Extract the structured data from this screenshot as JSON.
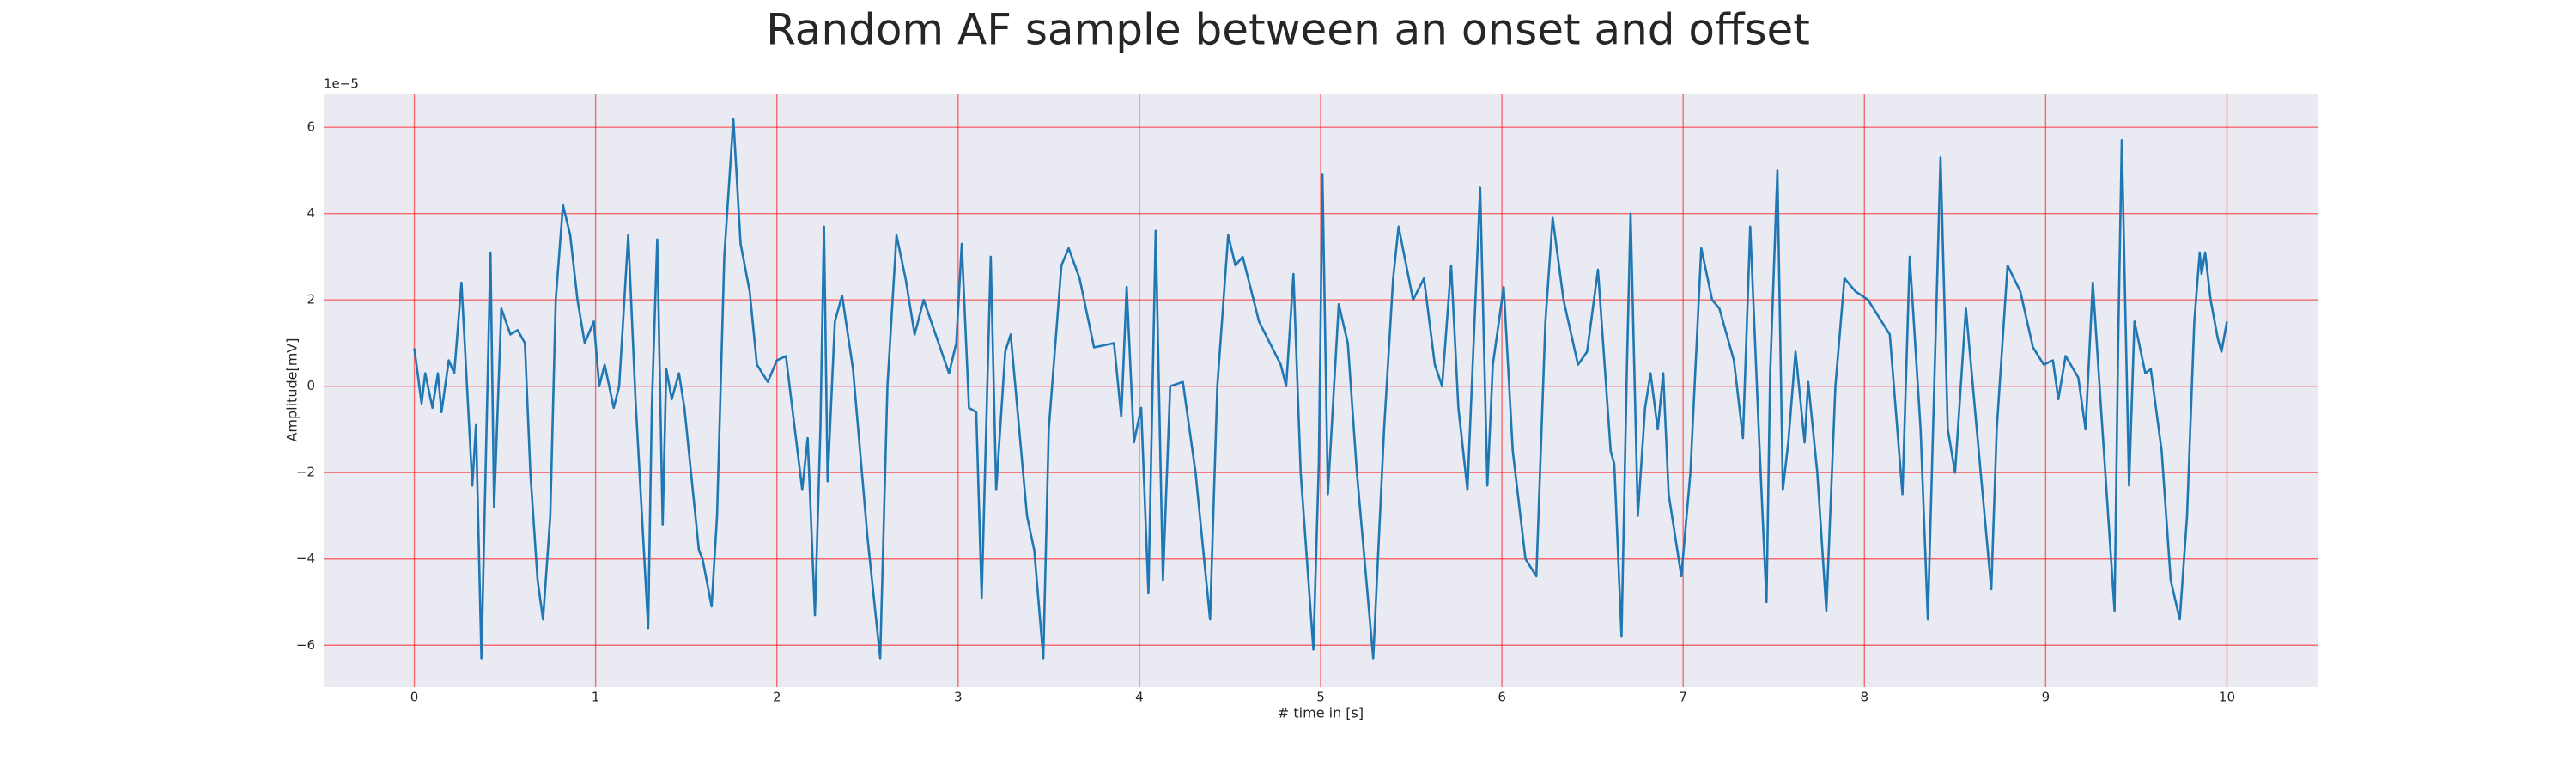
{
  "chart_data": {
    "type": "line",
    "title": "Random AF sample between an onset and offset",
    "x_label": "# time in [s]",
    "y_label": "Amplitude[mV]",
    "y_offset_text": "1e−5",
    "xlim": [
      -0.5,
      10.5
    ],
    "ylim": [
      -6.97,
      6.78
    ],
    "xticks": [
      0,
      1,
      2,
      3,
      4,
      5,
      6,
      7,
      8,
      9,
      10
    ],
    "yticks": [
      {
        "value": -6,
        "label": "−6"
      },
      {
        "value": -4,
        "label": "−4"
      },
      {
        "value": -2,
        "label": "−2"
      },
      0,
      2,
      4,
      6
    ],
    "grid": true,
    "grid_color": "#ff0000",
    "background": "#eaeaf2",
    "x": [
      0.0,
      0.04,
      0.06,
      0.1,
      0.13,
      0.15,
      0.19,
      0.22,
      0.26,
      0.32,
      0.34,
      0.37,
      0.42,
      0.44,
      0.48,
      0.53,
      0.57,
      0.61,
      0.64,
      0.68,
      0.71,
      0.75,
      0.78,
      0.82,
      0.86,
      0.9,
      0.94,
      0.99,
      1.02,
      1.05,
      1.1,
      1.13,
      1.18,
      1.22,
      1.29,
      1.31,
      1.34,
      1.37,
      1.39,
      1.42,
      1.46,
      1.49,
      1.57,
      1.59,
      1.64,
      1.67,
      1.71,
      1.76,
      1.8,
      1.85,
      1.89,
      1.95,
      2.0,
      2.05,
      2.14,
      2.17,
      2.21,
      2.24,
      2.26,
      2.28,
      2.32,
      2.36,
      2.42,
      2.5,
      2.57,
      2.61,
      2.66,
      2.71,
      2.76,
      2.81,
      2.95,
      2.99,
      3.02,
      3.06,
      3.1,
      3.13,
      3.18,
      3.21,
      3.26,
      3.29,
      3.38,
      3.42,
      3.47,
      3.5,
      3.57,
      3.61,
      3.67,
      3.75,
      3.86,
      3.9,
      3.93,
      3.97,
      4.01,
      4.05,
      4.09,
      4.13,
      4.17,
      4.24,
      4.31,
      4.39,
      4.43,
      4.49,
      4.53,
      4.57,
      4.66,
      4.78,
      4.81,
      4.85,
      4.89,
      4.96,
      4.99,
      5.01,
      5.04,
      5.1,
      5.15,
      5.2,
      5.29,
      5.35,
      5.4,
      5.43,
      5.51,
      5.57,
      5.63,
      5.67,
      5.72,
      5.76,
      5.81,
      5.88,
      5.92,
      5.95,
      6.01,
      6.06,
      6.13,
      6.19,
      6.24,
      6.28,
      6.34,
      6.42,
      6.47,
      6.53,
      6.6,
      6.62,
      6.66,
      6.69,
      6.71,
      6.75,
      6.79,
      6.82,
      6.86,
      6.89,
      6.92,
      6.99,
      7.04,
      7.1,
      7.16,
      7.2,
      7.28,
      7.33,
      7.37,
      7.42,
      7.46,
      7.48,
      7.52,
      7.55,
      7.58,
      7.62,
      7.67,
      7.69,
      7.74,
      7.79,
      7.84,
      7.89,
      7.95,
      8.02,
      8.14,
      8.21,
      8.25,
      8.31,
      8.35,
      8.42,
      8.46,
      8.5,
      8.56,
      8.62,
      8.7,
      8.73,
      8.79,
      8.86,
      8.93,
      8.99,
      9.04,
      9.07,
      9.11,
      9.18,
      9.22,
      9.26,
      9.31,
      9.38,
      9.4,
      9.42,
      9.46,
      9.49,
      9.55,
      9.58,
      9.64,
      9.69,
      9.74,
      9.78,
      9.82,
      9.85,
      9.86,
      9.88,
      9.91,
      9.95,
      9.97,
      10.0
    ],
    "series": [
      {
        "color": "#1f77b4",
        "values": [
          0.88,
          -0.4,
          0.3,
          -0.5,
          0.3,
          -0.6,
          0.6,
          0.3,
          2.4,
          -2.3,
          -0.9,
          -6.3,
          3.1,
          -2.8,
          1.8,
          1.2,
          1.3,
          1.0,
          -2,
          -4.5,
          -5.4,
          -3,
          2,
          4.2,
          3.5,
          2,
          1.0,
          1.5,
          0,
          0.5,
          -0.5,
          0,
          3.5,
          -0.3,
          -5.6,
          -0.5,
          3.4,
          -3.2,
          0.4,
          -0.3,
          0.3,
          -0.5,
          -3.8,
          -4,
          -5.1,
          -3,
          3,
          6.2,
          3.3,
          2.2,
          0.5,
          0.1,
          0.6,
          0.7,
          -2.4,
          -1.2,
          -5.3,
          -1,
          3.7,
          -2.2,
          1.5,
          2.1,
          0.4,
          -3.5,
          -6.3,
          0,
          3.5,
          2.5,
          1.2,
          2,
          0.3,
          1,
          3.3,
          -0.5,
          -0.6,
          -4.9,
          3,
          -2.4,
          0.8,
          1.2,
          -3,
          -3.8,
          -6.3,
          -1,
          2.8,
          3.2,
          2.5,
          0.9,
          1.0,
          -0.7,
          2.3,
          -1.3,
          -0.5,
          -4.8,
          3.6,
          -4.5,
          0,
          0.1,
          -2,
          -5.4,
          0,
          3.5,
          2.8,
          3,
          1.5,
          0.5,
          0,
          2.6,
          -2,
          -6.1,
          -1.8,
          4.9,
          -2.5,
          1.9,
          1,
          -2,
          -6.3,
          -1,
          2.5,
          3.7,
          2,
          2.5,
          0.5,
          0,
          2.8,
          -0.5,
          -2.4,
          4.6,
          -2.3,
          0.5,
          2.3,
          -1.5,
          -4,
          -4.4,
          1.5,
          3.9,
          2,
          0.5,
          0.8,
          2.7,
          -1.5,
          -1.8,
          -5.8,
          0.5,
          4.0,
          -3,
          -0.5,
          0.3,
          -1,
          0.3,
          -2.5,
          -4.4,
          -2,
          3.2,
          2,
          1.8,
          0.6,
          -1.2,
          3.7,
          -1.3,
          -5,
          0.3,
          5.0,
          -2.4,
          -1.3,
          0.8,
          -1.3,
          0.1,
          -2,
          -5.2,
          0,
          2.5,
          2.2,
          2,
          1.2,
          -2.5,
          3,
          -1,
          -5.4,
          5.3,
          -1,
          -2,
          1.8,
          -1,
          -4.7,
          -1,
          2.8,
          2.2,
          0.9,
          0.5,
          0.6,
          -0.3,
          0.7,
          0.2,
          -1,
          2.4,
          -0.8,
          -5.2,
          1,
          5.7,
          -2.3,
          1.5,
          0.3,
          0.4,
          -1.5,
          -4.5,
          -5.4,
          -3,
          1.5,
          3.1,
          2.6,
          3.1,
          2,
          1.1,
          0.8,
          1.5
        ]
      }
    ]
  }
}
